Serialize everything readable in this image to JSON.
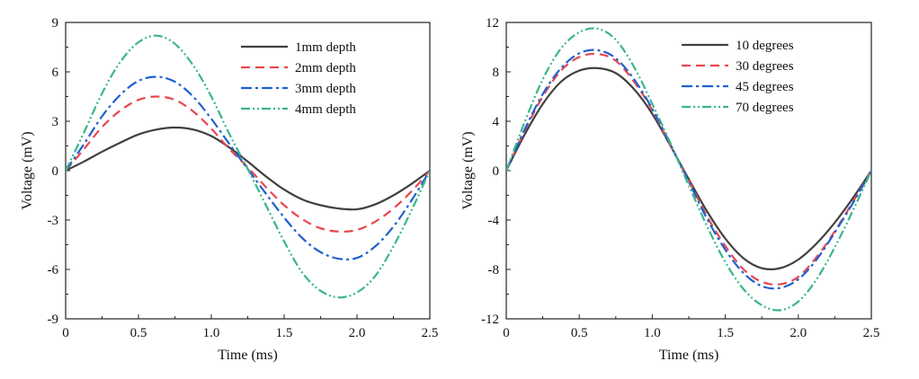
{
  "chart_data": [
    {
      "type": "line",
      "xlabel": "Time (ms)",
      "ylabel": "Voltage (mV)",
      "xlim": [
        0,
        2.5
      ],
      "ylim": [
        -9,
        9
      ],
      "xticks": [
        "0",
        "0.5",
        "1.0",
        "1.5",
        "2.0",
        "2.5"
      ],
      "yticks": [
        "9",
        "6",
        "3",
        "0",
        "-3",
        "-6",
        "-9"
      ],
      "legend_position": "top-right",
      "grid": false,
      "x": [
        0,
        0.125,
        0.25,
        0.375,
        0.5,
        0.625,
        0.75,
        0.875,
        1.0,
        1.125,
        1.25,
        1.375,
        1.5,
        1.625,
        1.75,
        1.875,
        2.0,
        2.125,
        2.25,
        2.375,
        2.5
      ],
      "series": [
        {
          "name": "1mm depth",
          "color": "#404040",
          "dash": "solid",
          "values": [
            0,
            0.55,
            1.15,
            1.7,
            2.2,
            2.5,
            2.62,
            2.5,
            2.1,
            1.4,
            0.55,
            -0.35,
            -1.15,
            -1.75,
            -2.1,
            -2.3,
            -2.35,
            -2.05,
            -1.5,
            -0.8,
            0
          ]
        },
        {
          "name": "2mm depth",
          "color": "#e8474e",
          "dash": "dashed",
          "values": [
            0,
            1.3,
            2.65,
            3.65,
            4.3,
            4.5,
            4.3,
            3.6,
            2.55,
            1.3,
            0.2,
            -1.0,
            -2.1,
            -2.95,
            -3.5,
            -3.7,
            -3.6,
            -3.1,
            -2.3,
            -1.25,
            0
          ]
        },
        {
          "name": "3mm depth",
          "color": "#2060d0",
          "dash": "dashdot",
          "values": [
            0,
            1.6,
            3.3,
            4.6,
            5.45,
            5.7,
            5.4,
            4.5,
            3.15,
            1.6,
            0.1,
            -1.4,
            -2.85,
            -4.1,
            -4.95,
            -5.35,
            -5.3,
            -4.6,
            -3.4,
            -1.8,
            0
          ]
        },
        {
          "name": "4mm depth",
          "color": "#3bb58a",
          "dash": "dashdotdot",
          "values": [
            0,
            2.3,
            4.7,
            6.6,
            7.8,
            8.2,
            7.7,
            6.4,
            4.5,
            2.2,
            0.1,
            -2.1,
            -4.3,
            -6.2,
            -7.3,
            -7.7,
            -7.4,
            -6.4,
            -4.6,
            -2.4,
            0
          ]
        }
      ]
    },
    {
      "type": "line",
      "xlabel": "Time (ms)",
      "ylabel": "Voltage (mV)",
      "xlim": [
        0,
        2.5
      ],
      "ylim": [
        -12,
        12
      ],
      "xticks": [
        "0",
        "0.5",
        "1.0",
        "1.5",
        "2.0",
        "2.5"
      ],
      "yticks": [
        "12",
        "8",
        "4",
        "0",
        "-4",
        "-8",
        "-12"
      ],
      "legend_position": "top-right",
      "grid": false,
      "x": [
        0,
        0.125,
        0.25,
        0.375,
        0.5,
        0.625,
        0.75,
        0.875,
        1.0,
        1.125,
        1.25,
        1.375,
        1.5,
        1.625,
        1.75,
        1.875,
        2.0,
        2.125,
        2.25,
        2.375,
        2.5
      ],
      "series": [
        {
          "name": "10 degrees",
          "color": "#404040",
          "dash": "solid",
          "values": [
            0,
            2.9,
            5.4,
            7.2,
            8.1,
            8.3,
            7.9,
            6.6,
            4.6,
            2.0,
            -0.7,
            -3.3,
            -5.5,
            -7.1,
            -7.9,
            -7.9,
            -7.2,
            -5.9,
            -4.2,
            -2.2,
            0
          ]
        },
        {
          "name": "30 degrees",
          "color": "#e8474e",
          "dash": "dashed",
          "values": [
            0,
            3.2,
            6.0,
            8.1,
            9.2,
            9.45,
            8.9,
            7.2,
            4.9,
            2.0,
            -0.8,
            -3.7,
            -6.1,
            -8.0,
            -9.0,
            -9.2,
            -8.6,
            -7.0,
            -4.9,
            -2.5,
            0
          ]
        },
        {
          "name": "45 degrees",
          "color": "#2060d0",
          "dash": "dashdot",
          "values": [
            0,
            3.3,
            6.2,
            8.3,
            9.5,
            9.75,
            9.1,
            7.4,
            5.0,
            2.1,
            -0.9,
            -3.9,
            -6.4,
            -8.3,
            -9.35,
            -9.5,
            -8.8,
            -7.2,
            -5.0,
            -2.6,
            0
          ]
        },
        {
          "name": "70 degrees",
          "color": "#3bb58a",
          "dash": "dashdotdot",
          "values": [
            0,
            3.9,
            7.4,
            9.9,
            11.2,
            11.5,
            10.6,
            8.4,
            5.4,
            2.2,
            -1.2,
            -4.5,
            -7.4,
            -9.6,
            -10.9,
            -11.3,
            -10.6,
            -8.8,
            -6.2,
            -3.2,
            0
          ]
        }
      ]
    }
  ]
}
